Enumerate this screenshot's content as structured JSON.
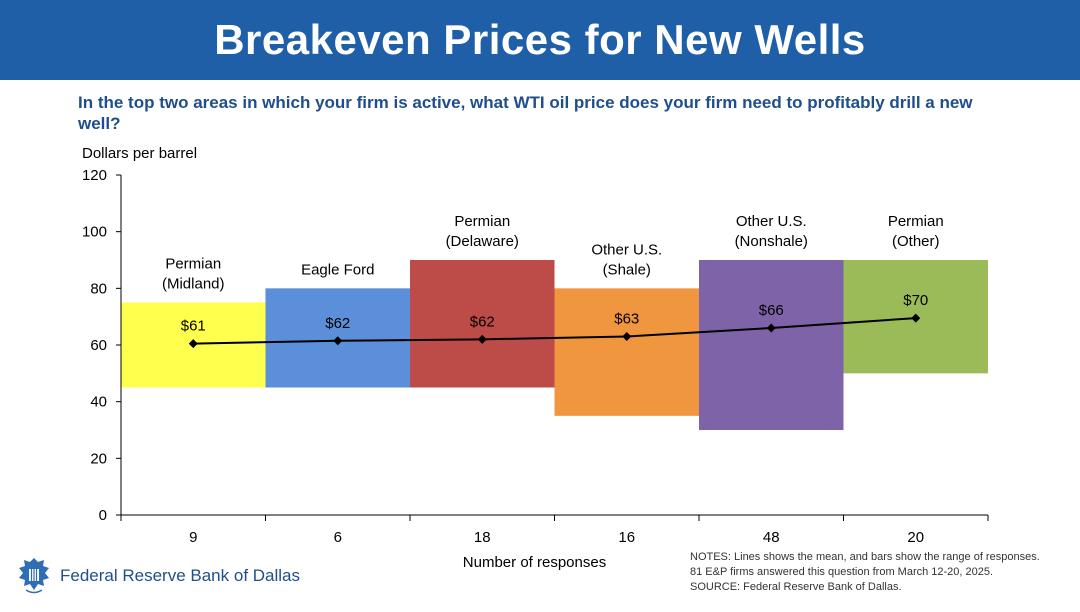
{
  "header": {
    "title": "Breakeven Prices for New Wells"
  },
  "question": "In the top two areas in which your firm is active, what WTI oil price does your firm need to profitably drill a new well?",
  "chart_data": {
    "type": "bar",
    "y_unit_label": "Dollars per barrel",
    "xlabel": "Number of responses",
    "ylim": [
      0,
      120
    ],
    "y_ticks": [
      0,
      20,
      40,
      60,
      80,
      100,
      120
    ],
    "categories": [
      {
        "label_lines": [
          "Permian",
          "(Midland)"
        ],
        "responses": "9",
        "low": 45,
        "high": 75,
        "mean": 60.5,
        "mean_label": "$61",
        "color": "#ffff4d"
      },
      {
        "label_lines": [
          "Eagle Ford"
        ],
        "responses": "6",
        "low": 45,
        "high": 80,
        "mean": 61.5,
        "mean_label": "$62",
        "color": "#5b8fd9"
      },
      {
        "label_lines": [
          "Permian",
          "(Delaware)"
        ],
        "responses": "18",
        "low": 45,
        "high": 90,
        "mean": 62,
        "mean_label": "$62",
        "color": "#bd4b48"
      },
      {
        "label_lines": [
          "Other U.S.",
          "(Shale)"
        ],
        "responses": "16",
        "low": 35,
        "high": 80,
        "mean": 63,
        "mean_label": "$63",
        "color": "#f0963f"
      },
      {
        "label_lines": [
          "Other U.S.",
          "(Nonshale)"
        ],
        "responses": "48",
        "low": 30,
        "high": 90,
        "mean": 66,
        "mean_label": "$66",
        "color": "#7f63a8"
      },
      {
        "label_lines": [
          "Permian",
          "(Other)"
        ],
        "responses": "20",
        "low": 50,
        "high": 90,
        "mean": 69.5,
        "mean_label": "$70",
        "color": "#9bbb59"
      }
    ],
    "mean_line_color": "#000000"
  },
  "notes": [
    "NOTES: Lines shows the mean, and bars show the range of responses.",
    "81 E&P firms answered this question from March 12-20, 2025.",
    "SOURCE: Federal Reserve Bank of Dallas."
  ],
  "footer": {
    "logo_text": "Federal Reserve Bank of Dallas",
    "logo_icon": "eagle-seal-icon"
  }
}
